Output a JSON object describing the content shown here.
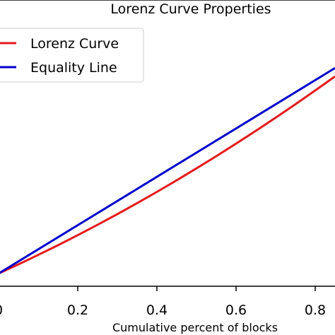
{
  "chart_data": {
    "type": "line",
    "title": "Lorenz Curve Properties",
    "xlabel": "Cumulative percent of blocks",
    "ylabel": "",
    "x_ticks": [
      "0",
      "0.2",
      "0.4",
      "0.6",
      "0.8"
    ],
    "xlim": [
      0.0,
      0.85
    ],
    "ylim": [
      0.0,
      0.85
    ],
    "grid": false,
    "legend": {
      "placement": "upper-left"
    },
    "series": [
      {
        "name": "Lorenz Curve",
        "color": "#e41a1c",
        "x": [
          0.0,
          0.05,
          0.1,
          0.15,
          0.2,
          0.25,
          0.3,
          0.35,
          0.4,
          0.45,
          0.5,
          0.55,
          0.6,
          0.65,
          0.7,
          0.75,
          0.8,
          0.85
        ],
        "y": [
          0.0,
          0.0378,
          0.0768,
          0.1171,
          0.1587,
          0.2015,
          0.2457,
          0.2911,
          0.3378,
          0.3858,
          0.435,
          0.4855,
          0.5373,
          0.5903,
          0.6447,
          0.7003,
          0.7572,
          0.8154
        ]
      },
      {
        "name": "Equality Line",
        "color": "#0000cc",
        "x": [
          0.0,
          0.85
        ],
        "y": [
          0.0,
          0.85
        ]
      }
    ]
  }
}
